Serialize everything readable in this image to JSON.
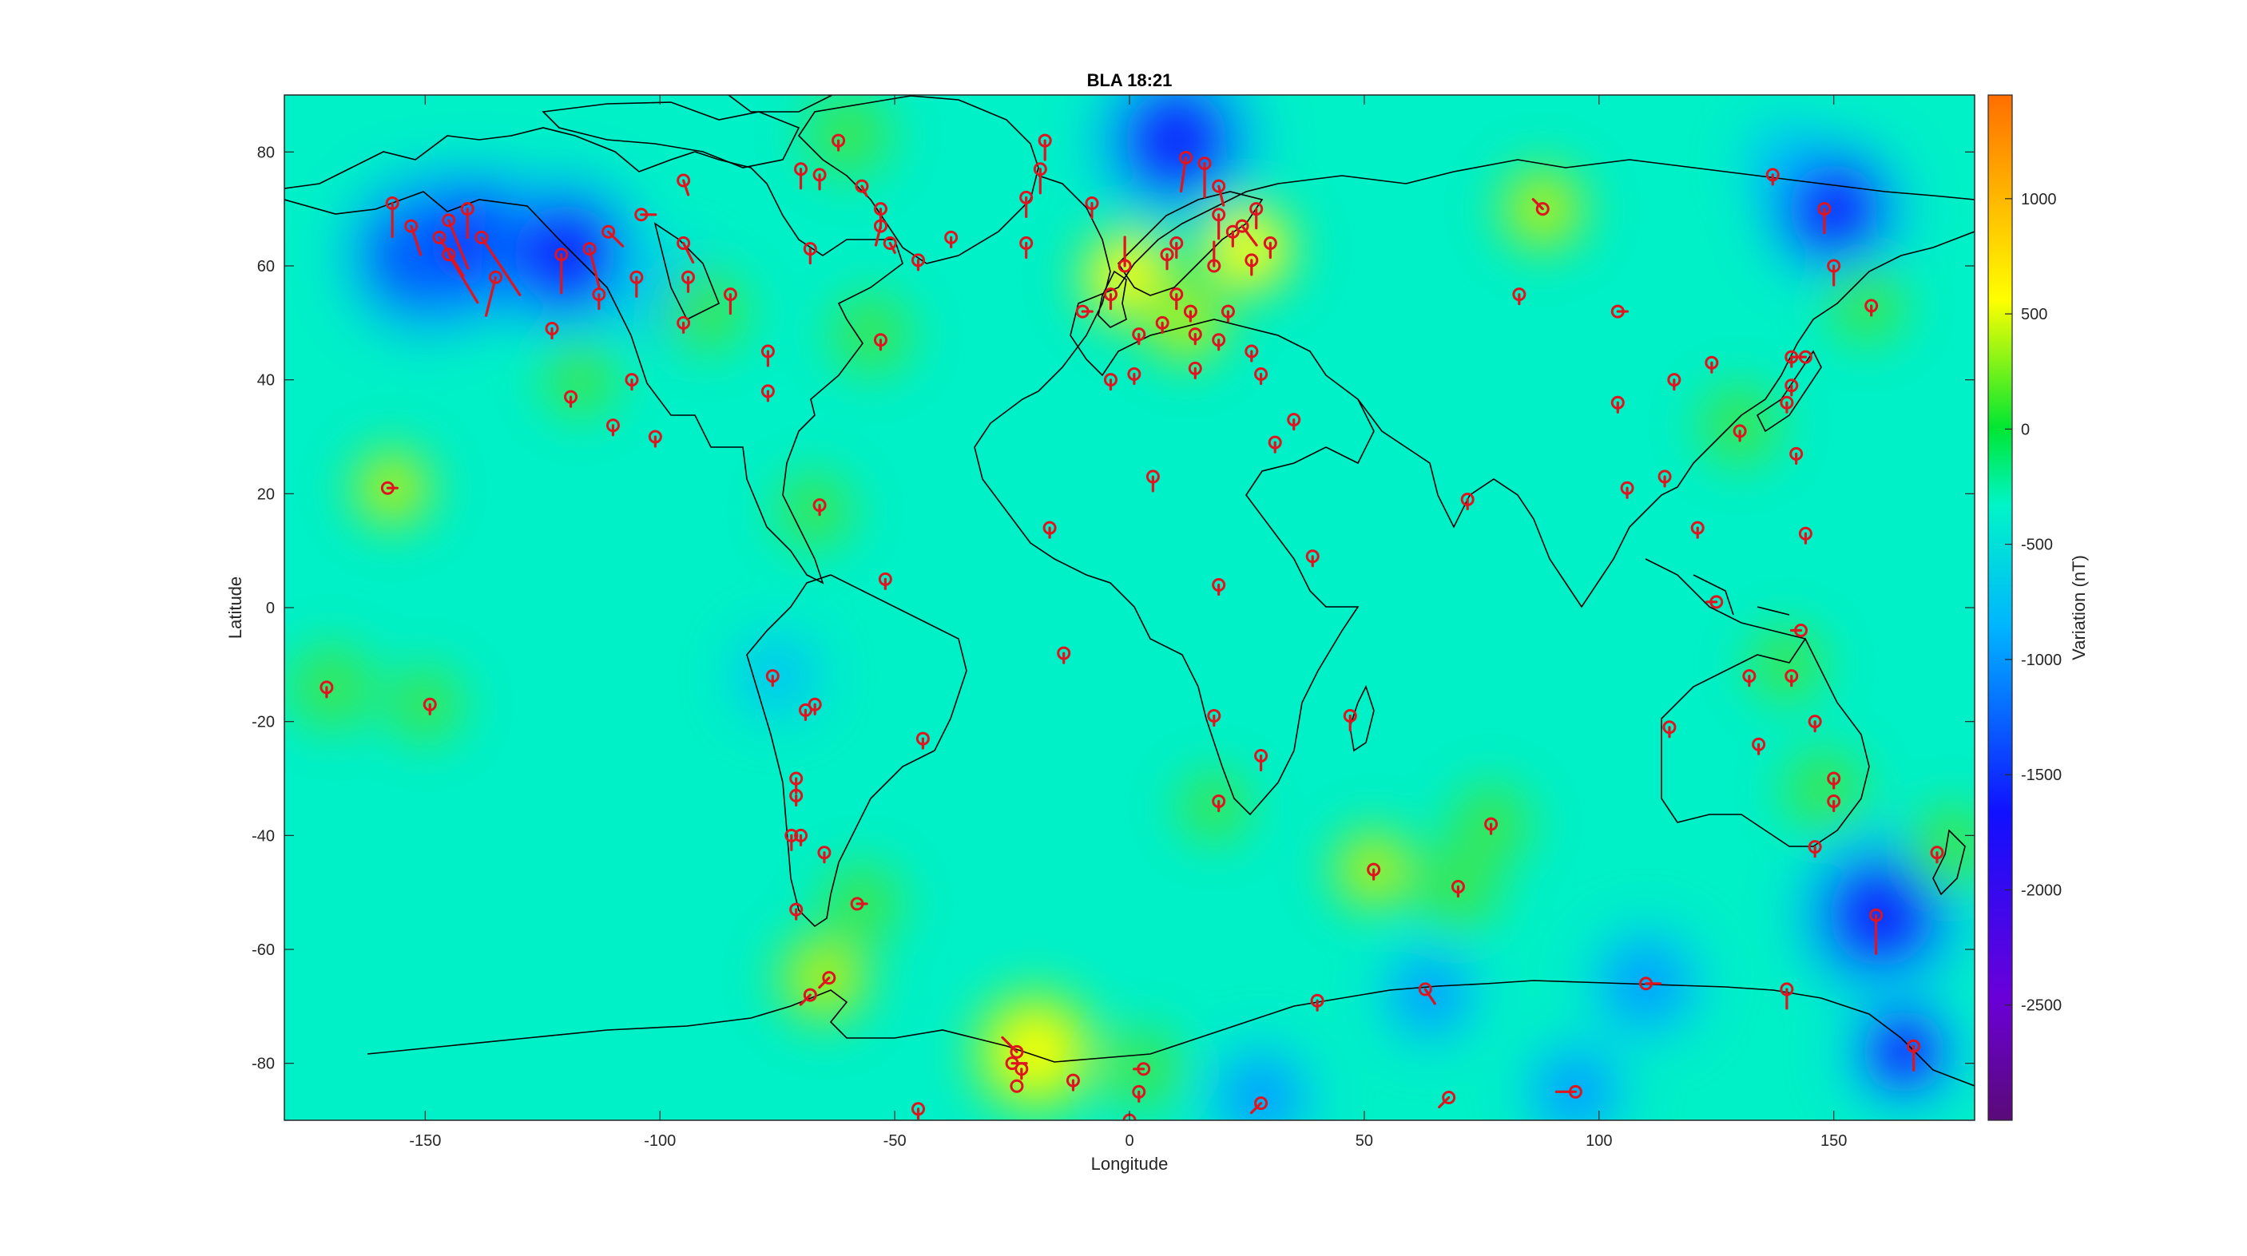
{
  "title": "BLA 18:21",
  "axes": {
    "xlabel": "Longitude",
    "ylabel": "Latitude",
    "xlim": [
      -180,
      180
    ],
    "ylim": [
      -90,
      90
    ],
    "xticks": [
      -150,
      -100,
      -50,
      0,
      50,
      100,
      150
    ],
    "yticks": [
      80,
      60,
      40,
      20,
      0,
      -20,
      -40,
      -60,
      -80
    ]
  },
  "colorbar": {
    "label": "Variation (nT)",
    "range": [
      -3000,
      1450
    ],
    "ticks": [
      1000,
      500,
      0,
      -500,
      -1000,
      -1500,
      -2000,
      -2500
    ]
  },
  "colors": {
    "background": "#00f0c8",
    "station": "#e0141e",
    "coast": "#000000"
  },
  "chart_data": {
    "type": "heatmap",
    "blobs": [
      {
        "lon": -150,
        "lat": 62,
        "value": -900
      },
      {
        "lon": -138,
        "lat": 64,
        "value": -800
      },
      {
        "lon": -120,
        "lat": 62,
        "value": -850
      },
      {
        "lon": -98,
        "lat": 55,
        "value": -250
      },
      {
        "lon": -60,
        "lat": 83,
        "value": 200
      },
      {
        "lon": -55,
        "lat": 48,
        "value": 150
      },
      {
        "lon": -117,
        "lat": 40,
        "value": 80
      },
      {
        "lon": -90,
        "lat": 52,
        "value": 150
      },
      {
        "lon": 10,
        "lat": 82,
        "value": -900
      },
      {
        "lon": 0,
        "lat": 58,
        "value": 450
      },
      {
        "lon": 25,
        "lat": 63,
        "value": 400
      },
      {
        "lon": 12,
        "lat": 50,
        "value": 250
      },
      {
        "lon": 88,
        "lat": 70,
        "value": 280
      },
      {
        "lon": 140,
        "lat": 78,
        "value": -200
      },
      {
        "lon": 150,
        "lat": 70,
        "value": -700
      },
      {
        "lon": 157,
        "lat": 53,
        "value": 100
      },
      {
        "lon": -157,
        "lat": 21,
        "value": 220
      },
      {
        "lon": -170,
        "lat": -14,
        "value": 200
      },
      {
        "lon": -150,
        "lat": -17,
        "value": 100
      },
      {
        "lon": -67,
        "lat": 17,
        "value": 100
      },
      {
        "lon": -75,
        "lat": -12,
        "value": -200
      },
      {
        "lon": -65,
        "lat": -65,
        "value": 350
      },
      {
        "lon": -57,
        "lat": -52,
        "value": 150
      },
      {
        "lon": -20,
        "lat": -78,
        "value": 550
      },
      {
        "lon": 3,
        "lat": -81,
        "value": 150
      },
      {
        "lon": 28,
        "lat": -86,
        "value": -450
      },
      {
        "lon": 52,
        "lat": -46,
        "value": 250
      },
      {
        "lon": 70,
        "lat": -49,
        "value": 200
      },
      {
        "lon": 77,
        "lat": -38,
        "value": 150
      },
      {
        "lon": 64,
        "lat": -68,
        "value": -350
      },
      {
        "lon": 95,
        "lat": -85,
        "value": -400
      },
      {
        "lon": 110,
        "lat": -66,
        "value": -500
      },
      {
        "lon": 160,
        "lat": -54,
        "value": -900
      },
      {
        "lon": 165,
        "lat": -78,
        "value": -600
      },
      {
        "lon": 175,
        "lat": -42,
        "value": 180
      },
      {
        "lon": 130,
        "lat": 32,
        "value": 150
      },
      {
        "lon": 148,
        "lat": -32,
        "value": 150
      },
      {
        "lon": 140,
        "lat": -10,
        "value": 100
      },
      {
        "lon": 18,
        "lat": -35,
        "value": 50
      }
    ],
    "stations": [
      {
        "lon": -157,
        "lat": 71,
        "dlon": 0,
        "dlat": -7
      },
      {
        "lon": -153,
        "lat": 67,
        "dlon": 2,
        "dlat": -6
      },
      {
        "lon": -147,
        "lat": 65,
        "dlon": 5,
        "dlat": -8
      },
      {
        "lon": -145,
        "lat": 68,
        "dlon": 4,
        "dlat": -10
      },
      {
        "lon": -145,
        "lat": 62,
        "dlon": 6,
        "dlat": -10
      },
      {
        "lon": -141,
        "lat": 70,
        "dlon": 0,
        "dlat": -6
      },
      {
        "lon": -138,
        "lat": 65,
        "dlon": 8,
        "dlat": -12
      },
      {
        "lon": -135,
        "lat": 58,
        "dlon": -2,
        "dlat": -8
      },
      {
        "lon": -121,
        "lat": 62,
        "dlon": 0,
        "dlat": -8
      },
      {
        "lon": -115,
        "lat": 63,
        "dlon": 2,
        "dlat": -8
      },
      {
        "lon": -111,
        "lat": 66,
        "dlon": 3,
        "dlat": -3
      },
      {
        "lon": -113,
        "lat": 55,
        "dlon": 0,
        "dlat": -3
      },
      {
        "lon": -104,
        "lat": 69,
        "dlon": 3,
        "dlat": 0
      },
      {
        "lon": -105,
        "lat": 58,
        "dlon": 0,
        "dlat": -4
      },
      {
        "lon": -95,
        "lat": 75,
        "dlon": 1,
        "dlat": -3
      },
      {
        "lon": -95,
        "lat": 64,
        "dlon": 2,
        "dlat": -4
      },
      {
        "lon": -94,
        "lat": 58,
        "dlon": 0,
        "dlat": -3
      },
      {
        "lon": -95,
        "lat": 50,
        "dlon": 0,
        "dlat": -2
      },
      {
        "lon": -85,
        "lat": 55,
        "dlon": 0,
        "dlat": -4
      },
      {
        "lon": -77,
        "lat": 45,
        "dlon": 0,
        "dlat": -3
      },
      {
        "lon": -123,
        "lat": 49,
        "dlon": 0,
        "dlat": -2
      },
      {
        "lon": -119,
        "lat": 37,
        "dlon": 0,
        "dlat": -2
      },
      {
        "lon": -106,
        "lat": 40,
        "dlon": 0,
        "dlat": -2
      },
      {
        "lon": -110,
        "lat": 32,
        "dlon": 0,
        "dlat": -2
      },
      {
        "lon": -101,
        "lat": 30,
        "dlon": 0,
        "dlat": -2
      },
      {
        "lon": -77,
        "lat": 38,
        "dlon": 0,
        "dlat": -2
      },
      {
        "lon": -70,
        "lat": 77,
        "dlon": 0,
        "dlat": -4
      },
      {
        "lon": -66,
        "lat": 76,
        "dlon": 0,
        "dlat": -3
      },
      {
        "lon": -57,
        "lat": 74,
        "dlon": 1,
        "dlat": -2
      },
      {
        "lon": -53,
        "lat": 70,
        "dlon": 0,
        "dlat": -4
      },
      {
        "lon": -53,
        "lat": 67,
        "dlon": -1,
        "dlat": -4
      },
      {
        "lon": -51,
        "lat": 64,
        "dlon": 1,
        "dlat": -2
      },
      {
        "lon": -45,
        "lat": 61,
        "dlon": 0,
        "dlat": -2
      },
      {
        "lon": -38,
        "lat": 65,
        "dlon": 0,
        "dlat": -2
      },
      {
        "lon": -68,
        "lat": 63,
        "dlon": 0,
        "dlat": -3
      },
      {
        "lon": -53,
        "lat": 47,
        "dlon": 0,
        "dlat": -2
      },
      {
        "lon": -62,
        "lat": 82,
        "dlon": 0,
        "dlat": -2
      },
      {
        "lon": -18,
        "lat": 82,
        "dlon": 0,
        "dlat": -4
      },
      {
        "lon": -19,
        "lat": 77,
        "dlon": 0,
        "dlat": -5
      },
      {
        "lon": -22,
        "lat": 72,
        "dlon": 0,
        "dlat": -4
      },
      {
        "lon": -22,
        "lat": 64,
        "dlon": 0,
        "dlat": -3
      },
      {
        "lon": -8,
        "lat": 71,
        "dlon": 0,
        "dlat": -3
      },
      {
        "lon": 12,
        "lat": 79,
        "dlon": -1,
        "dlat": -7
      },
      {
        "lon": 16,
        "lat": 78,
        "dlon": 0,
        "dlat": -7
      },
      {
        "lon": 19,
        "lat": 74,
        "dlon": 1,
        "dlat": -4
      },
      {
        "lon": 19,
        "lat": 69,
        "dlon": 0,
        "dlat": -5
      },
      {
        "lon": 27,
        "lat": 70,
        "dlon": 0,
        "dlat": -4
      },
      {
        "lon": 24,
        "lat": 67,
        "dlon": 3,
        "dlat": -4
      },
      {
        "lon": 18,
        "lat": 60,
        "dlon": 0,
        "dlat": 5
      },
      {
        "lon": 26,
        "lat": 61,
        "dlon": 0,
        "dlat": -3
      },
      {
        "lon": -1,
        "lat": 60,
        "dlon": 0,
        "dlat": 6
      },
      {
        "lon": 10,
        "lat": 64,
        "dlon": 0,
        "dlat": -3
      },
      {
        "lon": 8,
        "lat": 62,
        "dlon": 0,
        "dlat": -3
      },
      {
        "lon": -10,
        "lat": 52,
        "dlon": 2,
        "dlat": 0
      },
      {
        "lon": -4,
        "lat": 55,
        "dlon": 0,
        "dlat": -3
      },
      {
        "lon": 10,
        "lat": 55,
        "dlon": 0,
        "dlat": -3
      },
      {
        "lon": 13,
        "lat": 52,
        "dlon": 0,
        "dlat": -2
      },
      {
        "lon": 7,
        "lat": 50,
        "dlon": 0,
        "dlat": -2
      },
      {
        "lon": 14,
        "lat": 48,
        "dlon": 0,
        "dlat": -2
      },
      {
        "lon": 19,
        "lat": 47,
        "dlon": 0,
        "dlat": -2
      },
      {
        "lon": 21,
        "lat": 52,
        "dlon": 0,
        "dlat": -2
      },
      {
        "lon": 26,
        "lat": 45,
        "dlon": 0,
        "dlat": -2
      },
      {
        "lon": 2,
        "lat": 48,
        "dlon": 0,
        "dlat": -2
      },
      {
        "lon": -4,
        "lat": 40,
        "dlon": 0,
        "dlat": -2
      },
      {
        "lon": 1,
        "lat": 41,
        "dlon": 0,
        "dlat": -2
      },
      {
        "lon": 14,
        "lat": 42,
        "dlon": 0,
        "dlat": -2
      },
      {
        "lon": 28,
        "lat": 41,
        "dlon": 0,
        "dlat": -2
      },
      {
        "lon": 30,
        "lat": 64,
        "dlon": 0,
        "dlat": -3
      },
      {
        "lon": 22,
        "lat": 66,
        "dlon": 0,
        "dlat": -3
      },
      {
        "lon": 31,
        "lat": 29,
        "dlon": 0,
        "dlat": -2
      },
      {
        "lon": 35,
        "lat": 33,
        "dlon": 0,
        "dlat": -2
      },
      {
        "lon": 5,
        "lat": 23,
        "dlon": 0,
        "dlat": -3
      },
      {
        "lon": -17,
        "lat": 14,
        "dlon": 0,
        "dlat": -2
      },
      {
        "lon": 39,
        "lat": 9,
        "dlon": 0,
        "dlat": -2
      },
      {
        "lon": 19,
        "lat": 4,
        "dlon": 0,
        "dlat": -2
      },
      {
        "lon": -14,
        "lat": -8,
        "dlon": 0,
        "dlat": -2
      },
      {
        "lon": 18,
        "lat": -19,
        "dlon": 0,
        "dlat": -2
      },
      {
        "lon": 28,
        "lat": -26,
        "dlon": 0,
        "dlat": -3
      },
      {
        "lon": 19,
        "lat": -34,
        "dlon": 0,
        "dlat": -2
      },
      {
        "lon": 47,
        "lat": -19,
        "dlon": 0,
        "dlat": -3
      },
      {
        "lon": 72,
        "lat": 19,
        "dlon": 0,
        "dlat": -2
      },
      {
        "lon": 83,
        "lat": 55,
        "dlon": 0,
        "dlat": -2
      },
      {
        "lon": 88,
        "lat": 70,
        "dlon": -2,
        "dlat": 2
      },
      {
        "lon": 104,
        "lat": 52,
        "dlon": 2,
        "dlat": 0
      },
      {
        "lon": 104,
        "lat": 36,
        "dlon": 0,
        "dlat": -2
      },
      {
        "lon": 116,
        "lat": 40,
        "dlon": 0,
        "dlat": -2
      },
      {
        "lon": 114,
        "lat": 23,
        "dlon": 0,
        "dlat": -2
      },
      {
        "lon": 106,
        "lat": 21,
        "dlon": 0,
        "dlat": -2
      },
      {
        "lon": 121,
        "lat": 14,
        "dlon": 0,
        "dlat": -2
      },
      {
        "lon": 124,
        "lat": 43,
        "dlon": 0,
        "dlat": -2
      },
      {
        "lon": 130,
        "lat": 31,
        "dlon": 0,
        "dlat": -2
      },
      {
        "lon": 140,
        "lat": 36,
        "dlon": 0,
        "dlat": -2
      },
      {
        "lon": 141,
        "lat": 39,
        "dlon": 0,
        "dlat": -2
      },
      {
        "lon": 141,
        "lat": 44,
        "dlon": 0,
        "dlat": -2
      },
      {
        "lon": 144,
        "lat": 44,
        "dlon": -3,
        "dlat": 0
      },
      {
        "lon": 142,
        "lat": 27,
        "dlon": 0,
        "dlat": -2
      },
      {
        "lon": 144,
        "lat": 13,
        "dlon": 0,
        "dlat": -2
      },
      {
        "lon": 137,
        "lat": 76,
        "dlon": 0,
        "dlat": -2
      },
      {
        "lon": 148,
        "lat": 70,
        "dlon": 0,
        "dlat": -5
      },
      {
        "lon": 150,
        "lat": 60,
        "dlon": 0,
        "dlat": -4
      },
      {
        "lon": 158,
        "lat": 53,
        "dlon": 0,
        "dlat": -2
      },
      {
        "lon": 125,
        "lat": 1,
        "dlon": -2,
        "dlat": 0
      },
      {
        "lon": 132,
        "lat": -12,
        "dlon": 0,
        "dlat": -2
      },
      {
        "lon": 141,
        "lat": -12,
        "dlon": 0,
        "dlat": -2
      },
      {
        "lon": 143,
        "lat": -4,
        "dlon": -2,
        "dlat": 0
      },
      {
        "lon": 115,
        "lat": -21,
        "dlon": 0,
        "dlat": -2
      },
      {
        "lon": 134,
        "lat": -24,
        "dlon": 0,
        "dlat": -2
      },
      {
        "lon": 146,
        "lat": -20,
        "dlon": 0,
        "dlat": -2
      },
      {
        "lon": 150,
        "lat": -30,
        "dlon": 0,
        "dlat": -2
      },
      {
        "lon": 150,
        "lat": -34,
        "dlon": 0,
        "dlat": -2
      },
      {
        "lon": 146,
        "lat": -42,
        "dlon": 0,
        "dlat": -2
      },
      {
        "lon": 172,
        "lat": -43,
        "dlon": 0,
        "dlat": -2
      },
      {
        "lon": 159,
        "lat": -54,
        "dlon": 0,
        "dlat": -8
      },
      {
        "lon": 167,
        "lat": -77,
        "dlon": 0,
        "dlat": -5
      },
      {
        "lon": 140,
        "lat": -67,
        "dlon": 0,
        "dlat": -4
      },
      {
        "lon": 110,
        "lat": -66,
        "dlon": 3,
        "dlat": 0
      },
      {
        "lon": 63,
        "lat": -67,
        "dlon": 2,
        "dlat": -3
      },
      {
        "lon": 40,
        "lat": -69,
        "dlon": 0,
        "dlat": -2
      },
      {
        "lon": 52,
        "lat": -46,
        "dlon": 0,
        "dlat": -2
      },
      {
        "lon": 70,
        "lat": -49,
        "dlon": 0,
        "dlat": -2
      },
      {
        "lon": 77,
        "lat": -38,
        "dlon": 0,
        "dlat": -2
      },
      {
        "lon": 95,
        "lat": -85,
        "dlon": -4,
        "dlat": 0
      },
      {
        "lon": 68,
        "lat": -86,
        "dlon": -2,
        "dlat": -2
      },
      {
        "lon": 28,
        "lat": -87,
        "dlon": -2,
        "dlat": -2
      },
      {
        "lon": 3,
        "lat": -81,
        "dlon": -2,
        "dlat": 0
      },
      {
        "lon": 2,
        "lat": -85,
        "dlon": 0,
        "dlat": -2
      },
      {
        "lon": 0,
        "lat": -90,
        "dlon": 0,
        "dlat": 0
      },
      {
        "lon": -12,
        "lat": -83,
        "dlon": 0,
        "dlat": -2
      },
      {
        "lon": -24,
        "lat": -78,
        "dlon": -3,
        "dlat": 3
      },
      {
        "lon": -25,
        "lat": -80,
        "dlon": 3,
        "dlat": 0
      },
      {
        "lon": -23,
        "lat": -81,
        "dlon": 0,
        "dlat": -2
      },
      {
        "lon": -24,
        "lat": -84,
        "dlon": 0,
        "dlat": 0
      },
      {
        "lon": -45,
        "lat": -88,
        "dlon": 0,
        "dlat": -2
      },
      {
        "lon": -68,
        "lat": -68,
        "dlon": -2,
        "dlat": -2
      },
      {
        "lon": -64,
        "lat": -65,
        "dlon": -2,
        "dlat": -2
      },
      {
        "lon": -58,
        "lat": -52,
        "dlon": 2,
        "dlat": 0
      },
      {
        "lon": -71,
        "lat": -53,
        "dlon": 0,
        "dlat": -2
      },
      {
        "lon": -72,
        "lat": -40,
        "dlon": 0,
        "dlat": -3
      },
      {
        "lon": -70,
        "lat": -40,
        "dlon": 0,
        "dlat": -2
      },
      {
        "lon": -65,
        "lat": -43,
        "dlon": 0,
        "dlat": -2
      },
      {
        "lon": -71,
        "lat": -30,
        "dlon": 0,
        "dlat": -3
      },
      {
        "lon": -71,
        "lat": -33,
        "dlon": 0,
        "dlat": -2
      },
      {
        "lon": -69,
        "lat": -18,
        "dlon": 0,
        "dlat": -2
      },
      {
        "lon": -67,
        "lat": -17,
        "dlon": 0,
        "dlat": -2
      },
      {
        "lon": -76,
        "lat": -12,
        "dlon": 0,
        "dlat": -2
      },
      {
        "lon": -44,
        "lat": -23,
        "dlon": 0,
        "dlat": -2
      },
      {
        "lon": -52,
        "lat": 5,
        "dlon": 0,
        "dlat": -2
      },
      {
        "lon": -66,
        "lat": 18,
        "dlon": 0,
        "dlat": -2
      },
      {
        "lon": -158,
        "lat": 21,
        "dlon": 2,
        "dlat": 0
      },
      {
        "lon": -171,
        "lat": -14,
        "dlon": 0,
        "dlat": -2
      },
      {
        "lon": -149,
        "lat": -17,
        "dlon": 0,
        "dlat": -2
      }
    ]
  }
}
